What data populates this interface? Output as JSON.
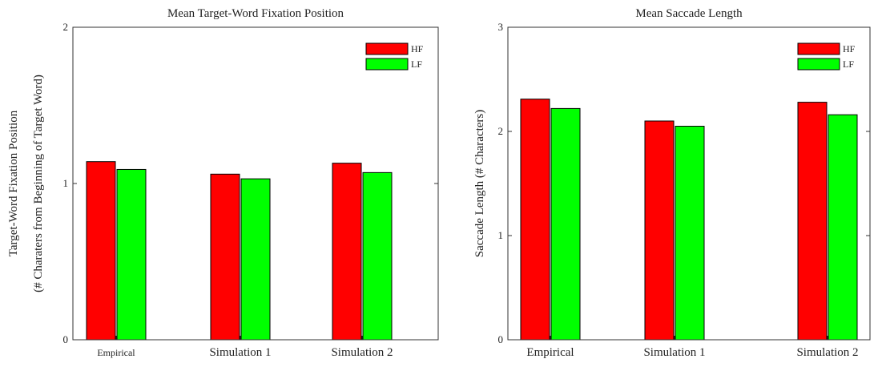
{
  "chart_data": [
    {
      "type": "bar",
      "title": "Mean Target-Word Fixation Position",
      "ylabel": "Target-Word Fixation Position",
      "ylabel2": "(# Charaters from Beginning of Target Word)",
      "xlabel": "",
      "categories": [
        "Empirical",
        "Simulation 1",
        "Simulation 2"
      ],
      "series": [
        {
          "name": "HF",
          "color": "#ff0000",
          "values": [
            1.14,
            1.06,
            1.13
          ]
        },
        {
          "name": "LF",
          "color": "#00ff00",
          "values": [
            1.09,
            1.03,
            1.07
          ]
        }
      ],
      "ylim": [
        0,
        2
      ],
      "yticks": [
        "0",
        "1",
        "2"
      ],
      "grid": false,
      "legend": "top-right"
    },
    {
      "type": "bar",
      "title": "Mean Saccade Length",
      "ylabel": "Saccade Length (# Characters)",
      "xlabel": "",
      "categories": [
        "Empirical",
        "Simulation 1",
        "Simulation 2"
      ],
      "series": [
        {
          "name": "HF",
          "color": "#ff0000",
          "values": [
            2.31,
            2.1,
            2.28
          ]
        },
        {
          "name": "LF",
          "color": "#00ff00",
          "values": [
            2.22,
            2.05,
            2.16
          ]
        }
      ],
      "ylim": [
        0,
        3
      ],
      "yticks": [
        "0",
        "1",
        "2",
        "3"
      ],
      "grid": false,
      "legend": "top-right"
    }
  ]
}
